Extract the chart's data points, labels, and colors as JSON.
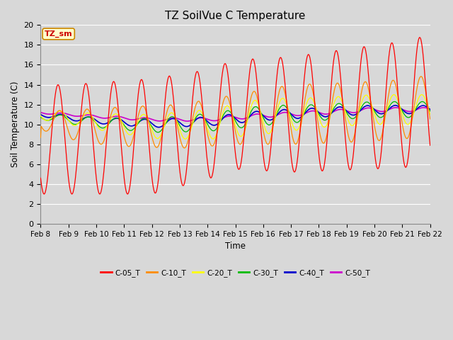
{
  "title": "TZ SoilVue C Temperature",
  "xlabel": "Time",
  "ylabel": "Soil Temperature (C)",
  "ylim": [
    0,
    20
  ],
  "annotation": "TZ_sm",
  "bg_color": "#d8d8d8",
  "series_colors": {
    "C-05_T": "#ff0000",
    "C-10_T": "#ff8c00",
    "C-20_T": "#ffff00",
    "C-30_T": "#00bb00",
    "C-40_T": "#0000cc",
    "C-50_T": "#cc00cc"
  },
  "xtick_labels": [
    "Feb 8",
    "Feb 9",
    "Feb 10",
    "Feb 11",
    "Feb 12",
    "Feb 13",
    "Feb 14",
    "Feb 15",
    "Feb 16",
    "Feb 17",
    "Feb 18",
    "Feb 19",
    "Feb 20",
    "Feb 21",
    "Feb 22"
  ],
  "xtick_positions": [
    0,
    1,
    2,
    3,
    4,
    5,
    6,
    7,
    8,
    9,
    10,
    11,
    12,
    13,
    14
  ],
  "yticks": [
    0,
    2,
    4,
    6,
    8,
    10,
    12,
    14,
    16,
    18,
    20
  ],
  "legend_labels": [
    "C-05_T",
    "C-10_T",
    "C-20_T",
    "C-30_T",
    "C-40_T",
    "C-50_T"
  ]
}
